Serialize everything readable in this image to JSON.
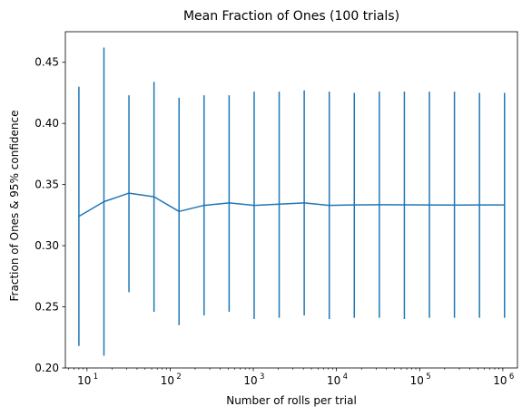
{
  "chart_data": {
    "type": "line",
    "title": "Mean Fraction of Ones (100 trials)",
    "xlabel": "Number of rolls per trial",
    "ylabel": "Fraction of Ones & 95% confidence",
    "x_scale": "log",
    "xlim": [
      5.5,
      1500000
    ],
    "ylim": [
      0.2,
      0.475
    ],
    "grid": false,
    "color": "#1f77b4",
    "x_ticks": [
      {
        "value": 10,
        "base": "10",
        "exp": "1"
      },
      {
        "value": 100,
        "base": "10",
        "exp": "2"
      },
      {
        "value": 1000,
        "base": "10",
        "exp": "3"
      },
      {
        "value": 10000,
        "base": "10",
        "exp": "4"
      },
      {
        "value": 100000,
        "base": "10",
        "exp": "5"
      },
      {
        "value": 1000000,
        "base": "10",
        "exp": "6"
      }
    ],
    "y_ticks": [
      {
        "value": 0.2,
        "label": "0.20"
      },
      {
        "value": 0.25,
        "label": "0.25"
      },
      {
        "value": 0.3,
        "label": "0.30"
      },
      {
        "value": 0.35,
        "label": "0.35"
      },
      {
        "value": 0.4,
        "label": "0.40"
      },
      {
        "value": 0.45,
        "label": "0.45"
      }
    ],
    "series": [
      {
        "x": [
          8,
          16,
          32,
          64,
          128,
          256,
          512,
          1024,
          2048,
          4096,
          8192,
          16384,
          32768,
          65536,
          131072,
          262144,
          524288,
          1048576
        ],
        "y": [
          0.324,
          0.336,
          0.343,
          0.34,
          0.328,
          0.333,
          0.335,
          0.333,
          0.334,
          0.335,
          0.333,
          0.3333,
          0.3335,
          0.3334,
          0.3333,
          0.3332,
          0.3333,
          0.3333
        ],
        "lower": [
          0.218,
          0.21,
          0.262,
          0.246,
          0.235,
          0.243,
          0.246,
          0.24,
          0.241,
          0.243,
          0.24,
          0.241,
          0.241,
          0.24,
          0.241,
          0.241,
          0.241,
          0.241
        ],
        "upper": [
          0.43,
          0.462,
          0.423,
          0.434,
          0.421,
          0.423,
          0.423,
          0.426,
          0.426,
          0.427,
          0.426,
          0.425,
          0.426,
          0.426,
          0.426,
          0.426,
          0.425,
          0.425
        ]
      }
    ]
  }
}
